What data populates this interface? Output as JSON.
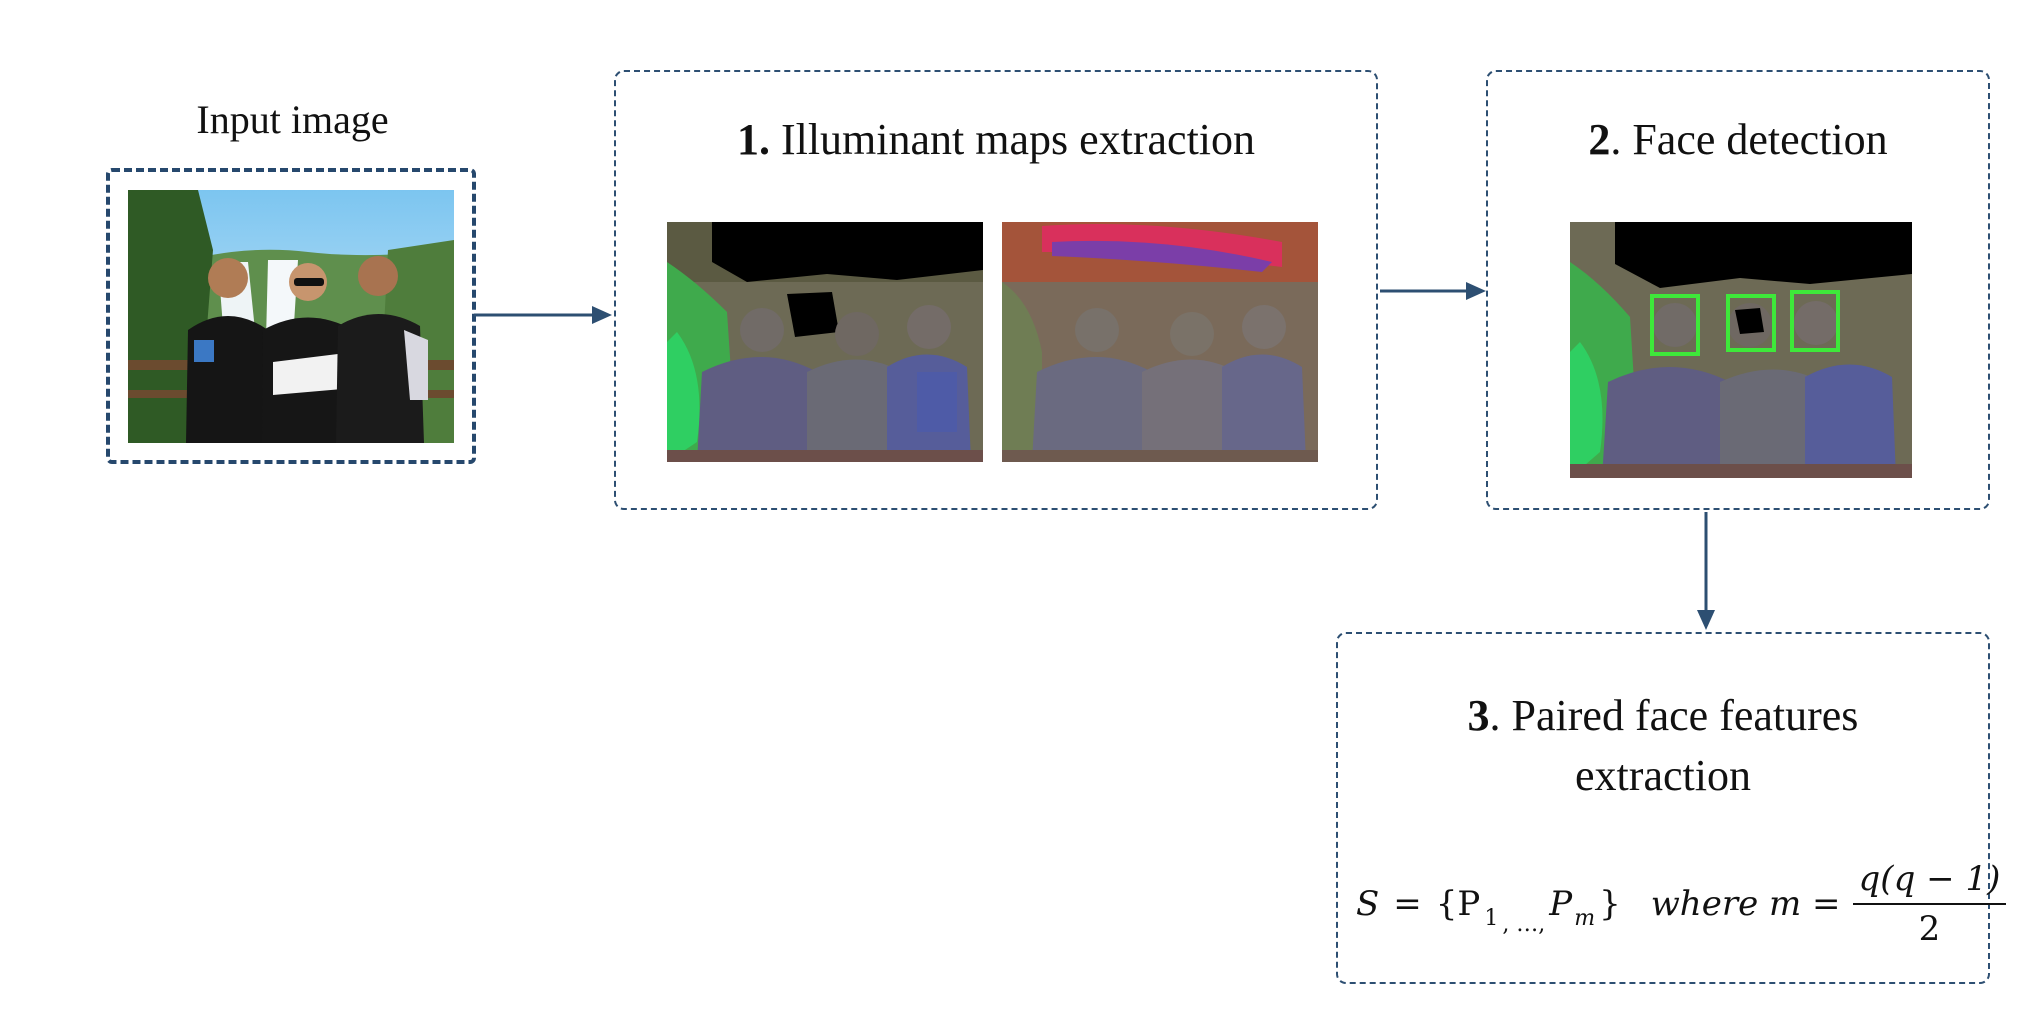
{
  "input": {
    "caption": "Input image"
  },
  "steps": [
    {
      "number": "1.",
      "label": "Illuminant maps extraction"
    },
    {
      "number": "2",
      "label": ". Face detection"
    },
    {
      "number": "3",
      "label_line1": ". Paired face features",
      "label_line2": "extraction"
    }
  ],
  "formula": {
    "lhs": "S",
    "eq": "=",
    "set_open": "{P",
    "sub1": "1",
    "sep": ", …,",
    "set_mid": "P",
    "subm": "m",
    "set_close": "}",
    "where": "where m =",
    "numerator": "q(q − 1)",
    "denominator": "2"
  },
  "colors": {
    "border": "#2d4f72",
    "arrow": "#2d4f72",
    "face_box": "#3ee83a"
  }
}
